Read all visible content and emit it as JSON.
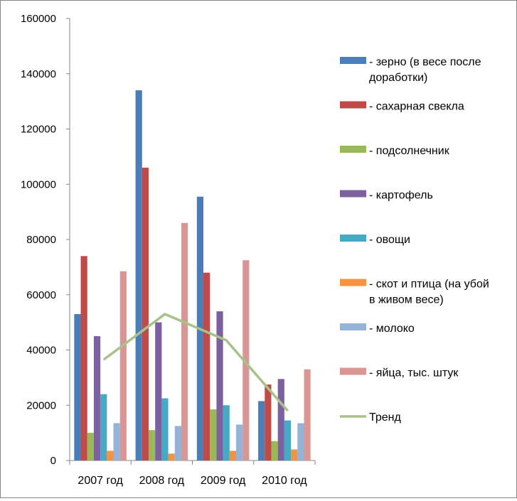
{
  "chart_data": {
    "type": "bar",
    "categories": [
      "2007 год",
      "2008 год",
      "2009 год",
      "2010 год"
    ],
    "ylim": [
      0,
      160000
    ],
    "yticks": [
      0,
      20000,
      40000,
      60000,
      80000,
      100000,
      120000,
      140000,
      160000
    ],
    "grid": false,
    "legend_position": "right",
    "series": [
      {
        "name": "- зерно (в весе после доработки)",
        "color": "#4a7ebb",
        "values": [
          53000,
          134000,
          95500,
          21500
        ]
      },
      {
        "name": "- сахарная свекла",
        "color": "#be4b48",
        "values": [
          74000,
          106000,
          68000,
          27500
        ]
      },
      {
        "name": "- подсолнечник",
        "color": "#98b954",
        "values": [
          10000,
          11000,
          18500,
          7000
        ]
      },
      {
        "name": "- картофель",
        "color": "#7d60a0",
        "values": [
          45000,
          50000,
          54000,
          29500
        ]
      },
      {
        "name": "- овощи",
        "color": "#46aac5",
        "values": [
          24000,
          22500,
          20000,
          14500
        ]
      },
      {
        "name": "- скот и птица (на убой в живом весе)",
        "color": "#f69240",
        "values": [
          3500,
          2500,
          3500,
          4000
        ]
      },
      {
        "name": "- молоко",
        "color": "#95b3d7",
        "values": [
          13500,
          12500,
          13000,
          13500
        ]
      },
      {
        "name": "- яйца, тыс. штук",
        "color": "#da9694",
        "values": [
          68500,
          86000,
          72500,
          33000
        ]
      }
    ],
    "trend": {
      "name": "Тренд",
      "color": "#a7c389",
      "values": [
        36500,
        53000,
        43500,
        18000
      ]
    }
  }
}
